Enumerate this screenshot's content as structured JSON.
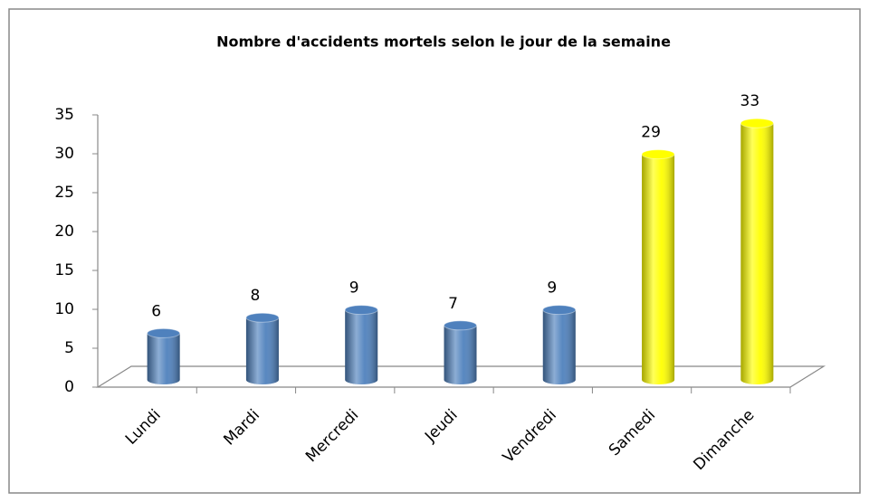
{
  "chart_data": {
    "type": "bar3d",
    "title": "Nombre d'accidents mortels selon le jour de la semaine",
    "categories": [
      "Lundi",
      "Mardi",
      "Mercredi",
      "Jeudi",
      "Vendredi",
      "Samedi",
      "Dimanche"
    ],
    "values": [
      6,
      8,
      9,
      7,
      9,
      29,
      33
    ],
    "colors": [
      "#4f81bd",
      "#4f81bd",
      "#4f81bd",
      "#4f81bd",
      "#4f81bd",
      "#ffff00",
      "#ffff00"
    ],
    "ylim": [
      0,
      35
    ],
    "yticks": [
      0,
      5,
      10,
      15,
      20,
      25,
      30,
      35
    ],
    "grid": false
  }
}
